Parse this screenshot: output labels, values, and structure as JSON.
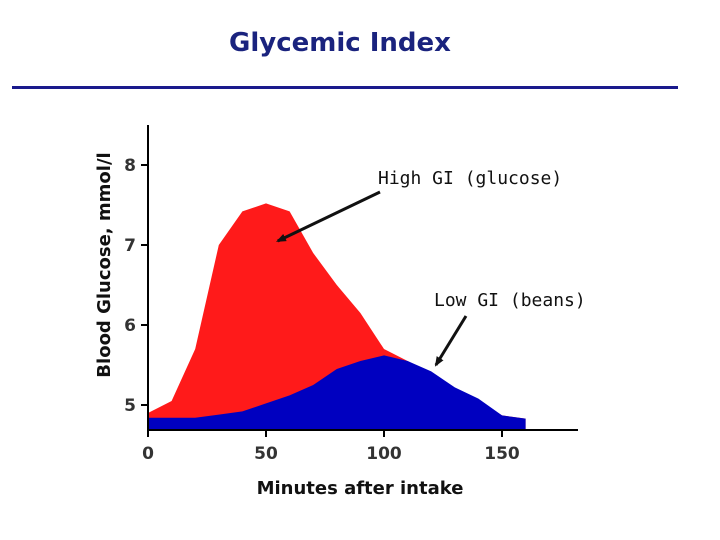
{
  "slide": {
    "title": "Glycemic Index"
  },
  "chart_data": {
    "type": "area",
    "title": "",
    "xlabel": "Minutes after intake",
    "ylabel": "Blood Glucose, mmol/l",
    "xlim": [
      0,
      185
    ],
    "ylim": [
      4.75,
      8.5
    ],
    "xticks": [
      0,
      50,
      100,
      150
    ],
    "yticks": [
      5,
      6,
      7,
      8
    ],
    "grid": false,
    "series": [
      {
        "name": "High GI (glucose)",
        "color": "#ff1a1a",
        "x": [
          0,
          10,
          20,
          30,
          40,
          50,
          60,
          70,
          80,
          90,
          100,
          110,
          120,
          130,
          140,
          150,
          160
        ],
        "y": [
          4.9,
          5.05,
          5.7,
          7.0,
          7.42,
          7.52,
          7.42,
          6.9,
          6.5,
          6.15,
          5.7,
          5.55,
          5.4,
          5.2,
          5.05,
          4.87,
          4.83
        ]
      },
      {
        "name": "Low GI (beans)",
        "color": "#0000c0",
        "x": [
          0,
          10,
          20,
          30,
          40,
          50,
          60,
          70,
          80,
          90,
          100,
          110,
          120,
          130,
          140,
          150,
          160
        ],
        "y": [
          4.84,
          4.84,
          4.84,
          4.88,
          4.92,
          5.02,
          5.12,
          5.25,
          5.45,
          5.55,
          5.62,
          5.55,
          5.42,
          5.22,
          5.08,
          4.87,
          4.83
        ]
      }
    ],
    "annotations": [
      {
        "text": "High GI (glucose)",
        "points_to": {
          "x": 55,
          "y": 7.05
        }
      },
      {
        "text": "Low GI (beans)",
        "points_to": {
          "x": 122,
          "y": 5.5
        }
      }
    ]
  }
}
